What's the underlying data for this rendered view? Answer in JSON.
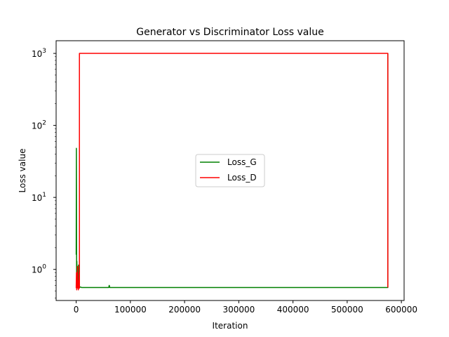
{
  "chart_data": {
    "type": "line",
    "title": "Generator vs Discriminator Loss value",
    "xlabel": "Iteration",
    "ylabel": "Loss value",
    "yscale": "log",
    "xlim": [
      -37000,
      605000
    ],
    "ylim": [
      0.37,
      1500
    ],
    "grid": false,
    "legend_position": "center",
    "x_ticks": [
      {
        "value": 0,
        "label": "0"
      },
      {
        "value": 100000,
        "label": "100000"
      },
      {
        "value": 200000,
        "label": "200000"
      },
      {
        "value": 300000,
        "label": "300000"
      },
      {
        "value": 400000,
        "label": "400000"
      },
      {
        "value": 500000,
        "label": "500000"
      },
      {
        "value": 600000,
        "label": "600000"
      }
    ],
    "y_ticks": [
      {
        "value": 1,
        "base": "10",
        "exp": "0"
      },
      {
        "value": 10,
        "base": "10",
        "exp": "1"
      },
      {
        "value": 100,
        "base": "10",
        "exp": "2"
      },
      {
        "value": 1000,
        "base": "10",
        "exp": "3"
      }
    ],
    "series": [
      {
        "name": "Loss_G",
        "color": "#008000",
        "x": [
          0,
          400,
          800,
          1200,
          1600,
          2000,
          2400,
          2800,
          3200,
          3600,
          4000,
          4400,
          4800,
          5200,
          5600,
          6000,
          8000,
          10000,
          60000,
          61000,
          62000,
          200000,
          300000,
          500000,
          573000,
          574000,
          574500,
          575000,
          575000
        ],
        "y": [
          1.6,
          48,
          0.9,
          1.3,
          0.7,
          1.1,
          0.6,
          0.8,
          0.58,
          0.9,
          0.6,
          1.15,
          0.62,
          0.7,
          0.58,
          0.56,
          0.57,
          0.56,
          0.56,
          0.6,
          0.56,
          0.56,
          0.56,
          0.56,
          0.56,
          0.56,
          0.56,
          0.56,
          1000
        ]
      },
      {
        "name": "Loss_D",
        "color": "#ff0000",
        "x": [
          0,
          500,
          1000,
          1500,
          2000,
          2500,
          3000,
          3500,
          4000,
          4500,
          5000,
          5500,
          6000,
          6000,
          575000,
          575000
        ],
        "y": [
          0.55,
          0.9,
          0.52,
          0.8,
          0.6,
          1.1,
          0.55,
          0.7,
          0.52,
          0.6,
          0.55,
          0.9,
          0.55,
          1000,
          1000,
          0.56
        ]
      }
    ]
  }
}
